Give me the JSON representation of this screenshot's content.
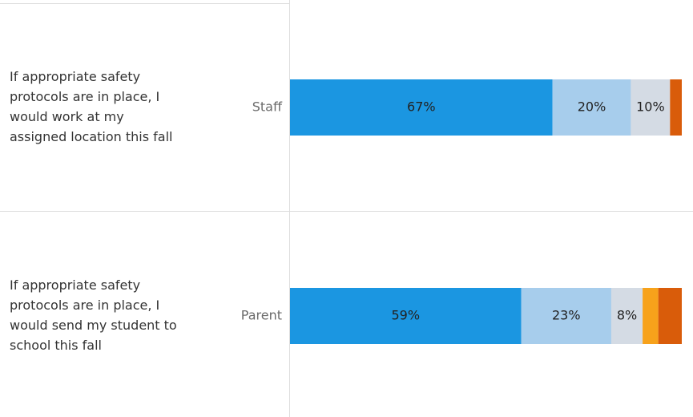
{
  "chart_data": {
    "type": "stacked-bar-horizontal",
    "questions": [
      [
        "If appropriate safety",
        "protocols are in place, I",
        "would work at my",
        "assigned location this fall"
      ],
      [
        "If appropriate safety",
        "protocols are in place, I",
        "would send my student to",
        "school this fall"
      ]
    ],
    "categories": [
      "Staff",
      "Parent"
    ],
    "xlim": [
      0,
      100
    ],
    "series": [
      {
        "color": "#1b96e1",
        "values": [
          67,
          59
        ],
        "value_labels": [
          "67%",
          "59%"
        ]
      },
      {
        "color": "#a7cdec",
        "values": [
          20,
          23
        ],
        "value_labels": [
          "20%",
          "23%"
        ]
      },
      {
        "color": "#d4dbe4",
        "values": [
          10,
          8
        ],
        "value_labels": [
          "10%",
          "8%"
        ]
      },
      {
        "color": "#f7a21b",
        "values": [
          0,
          4
        ],
        "value_labels": [
          null,
          null
        ]
      },
      {
        "color": "#d95c0a",
        "values": [
          3,
          6
        ],
        "value_labels": [
          null,
          null
        ]
      }
    ]
  }
}
